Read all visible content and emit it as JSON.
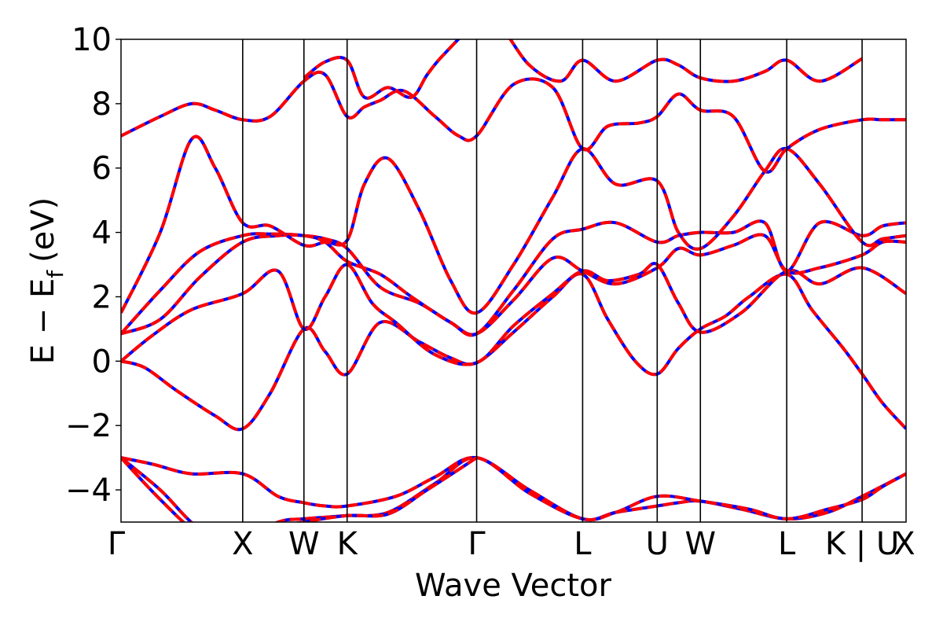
{
  "chart_data": {
    "type": "line",
    "title": "",
    "xlabel": "Wave Vector",
    "ylabel_main": "E − E",
    "ylabel_sub": "f",
    "ylabel_unit": "(eV)",
    "ylim": [
      -5,
      10
    ],
    "yticks": [
      -4,
      -2,
      0,
      2,
      4,
      6,
      8,
      10
    ],
    "ytick_labels": [
      "−4",
      "−2",
      "0",
      "2",
      "4",
      "6",
      "8",
      "10"
    ],
    "x_range": [
      0,
      1
    ],
    "kpoints": [
      {
        "label": "Γ",
        "x": 0.0
      },
      {
        "label": "X",
        "x": 0.155
      },
      {
        "label": "W",
        "x": 0.233
      },
      {
        "label": "K",
        "x": 0.288
      },
      {
        "label": "Γ",
        "x": 0.453
      },
      {
        "label": "L",
        "x": 0.588
      },
      {
        "label": "U",
        "x": 0.683
      },
      {
        "label": "W",
        "x": 0.738
      },
      {
        "label": "L",
        "x": 0.848
      },
      {
        "label": "K | U",
        "x": 0.944
      },
      {
        "label": "X",
        "x": 1.0
      }
    ],
    "grid": false,
    "series_style": {
      "under_color": "#0000ff",
      "over_color": "#ff0000"
    },
    "bands": [
      {
        "x": [
          0,
          0.04,
          0.09,
          0.155,
          0.2,
          0.233,
          0.26,
          0.288,
          0.35,
          0.4,
          0.453,
          0.52,
          0.588,
          0.63,
          0.683,
          0.71,
          0.738,
          0.79,
          0.848,
          0.9,
          0.944,
          1.0
        ],
        "y": [
          -3.0,
          -3.2,
          -3.5,
          -3.5,
          -4.2,
          -4.4,
          -4.5,
          -4.5,
          -4.2,
          -3.6,
          -3.0,
          -4.0,
          -4.9,
          -4.7,
          -4.5,
          -4.4,
          -4.35,
          -4.6,
          -4.9,
          -4.7,
          -4.2,
          -3.5
        ]
      },
      {
        "x": [
          0,
          0.05,
          0.1,
          0.155,
          0.2,
          0.233,
          0.26,
          0.288,
          0.34,
          0.4,
          0.453,
          0.52,
          0.588,
          0.63,
          0.683,
          0.738,
          0.8,
          0.848,
          0.9,
          0.944,
          0.97,
          1.0
        ],
        "y": [
          -3.0,
          -4.0,
          -5.2,
          -5.6,
          -5.0,
          -4.9,
          -4.85,
          -4.8,
          -4.7,
          -3.8,
          -3.0,
          -4.1,
          -4.9,
          -4.7,
          -4.2,
          -4.35,
          -4.6,
          -4.9,
          -4.6,
          -4.3,
          -3.9,
          -3.5
        ]
      },
      {
        "x": [
          0,
          0.05,
          0.1,
          0.155,
          0.2,
          0.233,
          0.288,
          0.34,
          0.39,
          0.453
        ],
        "y": [
          -3.0,
          -4.3,
          -5.4,
          -6.0,
          -5.2,
          -5.0,
          -4.8,
          -4.75,
          -4.0,
          -3.0
        ]
      },
      {
        "x": [
          0,
          0.03,
          0.07,
          0.12,
          0.155,
          0.19,
          0.233,
          0.26,
          0.288,
          0.33,
          0.38,
          0.42,
          0.453,
          0.5,
          0.55,
          0.588,
          0.62,
          0.655,
          0.683,
          0.71,
          0.738,
          0.77,
          0.8,
          0.848,
          0.88,
          0.92,
          0.944,
          0.97,
          1.0
        ],
        "y": [
          0.0,
          -0.2,
          -0.9,
          -1.7,
          -2.1,
          -1.0,
          1.0,
          0.3,
          -0.4,
          1.2,
          0.6,
          0.1,
          -0.05,
          0.9,
          2.0,
          2.7,
          1.3,
          0.0,
          -0.4,
          0.4,
          1.0,
          1.4,
          2.0,
          2.7,
          1.6,
          0.4,
          -0.4,
          -1.3,
          -2.1
        ]
      },
      {
        "x": [
          0,
          0.04,
          0.09,
          0.155,
          0.2,
          0.233,
          0.26,
          0.288,
          0.32,
          0.35,
          0.4,
          0.453,
          0.5,
          0.55,
          0.588,
          0.62,
          0.66,
          0.683,
          0.71,
          0.738,
          0.79,
          0.848,
          0.89,
          0.944,
          1.0
        ],
        "y": [
          0.0,
          0.8,
          1.6,
          2.1,
          2.8,
          1.0,
          2.0,
          3.0,
          1.8,
          1.2,
          0.2,
          -0.05,
          1.1,
          2.1,
          2.8,
          2.5,
          2.7,
          3.0,
          1.8,
          0.9,
          1.5,
          2.8,
          2.4,
          2.9,
          2.1
        ]
      },
      {
        "x": [
          0,
          0.05,
          0.1,
          0.155,
          0.2,
          0.233,
          0.26,
          0.288,
          0.33,
          0.38,
          0.42,
          0.453,
          0.5,
          0.55,
          0.588,
          0.63,
          0.683,
          0.71,
          0.738,
          0.78,
          0.82,
          0.848,
          0.89,
          0.944,
          0.97,
          1.0
        ],
        "y": [
          0.85,
          1.3,
          2.6,
          3.7,
          3.9,
          3.9,
          3.8,
          3.5,
          2.3,
          1.8,
          1.2,
          0.85,
          1.9,
          3.2,
          2.8,
          2.4,
          2.9,
          3.5,
          3.3,
          3.6,
          3.9,
          2.8,
          2.9,
          3.3,
          3.7,
          3.7
        ]
      },
      {
        "x": [
          0,
          0.05,
          0.1,
          0.155,
          0.19,
          0.233,
          0.26,
          0.288,
          0.33,
          0.37,
          0.42,
          0.453,
          0.5,
          0.55,
          0.588,
          0.63,
          0.683,
          0.71,
          0.738,
          0.78,
          0.82,
          0.848,
          0.89,
          0.944,
          0.97,
          1.0
        ],
        "y": [
          0.85,
          2.2,
          3.4,
          3.9,
          3.95,
          3.9,
          3.7,
          3.1,
          2.7,
          2.0,
          1.2,
          0.85,
          2.2,
          3.8,
          4.1,
          4.3,
          3.7,
          3.9,
          4.0,
          4.0,
          4.3,
          2.8,
          4.3,
          3.9,
          4.2,
          4.3
        ]
      },
      {
        "x": [
          0,
          0.05,
          0.09,
          0.12,
          0.155,
          0.19,
          0.233,
          0.26,
          0.288,
          0.31,
          0.34,
          0.38,
          0.42,
          0.453,
          0.5,
          0.55,
          0.588,
          0.63,
          0.683,
          0.71,
          0.738,
          0.78,
          0.82,
          0.848,
          0.89,
          0.944,
          0.97,
          1.0
        ],
        "y": [
          1.5,
          4.0,
          6.9,
          6.0,
          4.3,
          4.2,
          3.6,
          3.7,
          3.75,
          5.5,
          6.3,
          4.7,
          2.5,
          1.5,
          3.0,
          5.1,
          6.6,
          5.5,
          5.6,
          4.0,
          3.5,
          4.5,
          5.9,
          6.6,
          5.5,
          3.7,
          3.8,
          3.9
        ]
      },
      {
        "x": [
          0,
          0.05,
          0.09,
          0.12,
          0.155,
          0.19,
          0.233,
          0.26,
          0.288,
          0.31,
          0.33,
          0.36,
          0.4,
          0.43,
          0.453,
          0.5,
          0.55,
          0.588,
          0.62,
          0.66,
          0.683,
          0.71,
          0.738,
          0.78,
          0.82,
          0.848,
          0.89,
          0.944,
          0.97,
          1.0
        ],
        "y": [
          7.0,
          7.6,
          8.0,
          7.8,
          7.5,
          7.6,
          8.7,
          8.9,
          7.6,
          7.9,
          8.1,
          8.4,
          7.6,
          7.0,
          7.0,
          8.6,
          8.5,
          6.6,
          7.3,
          7.4,
          7.6,
          8.3,
          7.8,
          7.6,
          5.9,
          6.6,
          7.2,
          7.5,
          7.5,
          7.5
        ]
      },
      {
        "x": [
          0.233,
          0.26,
          0.288,
          0.31,
          0.34,
          0.37,
          0.39,
          0.41,
          0.453,
          0.48,
          0.52,
          0.56,
          0.588,
          0.63,
          0.683,
          0.71,
          0.738,
          0.78,
          0.82,
          0.848,
          0.89,
          0.944
        ],
        "y": [
          8.8,
          9.3,
          9.35,
          8.2,
          8.5,
          8.2,
          8.9,
          9.5,
          10.5,
          10.5,
          9.2,
          8.7,
          9.35,
          8.7,
          9.35,
          9.2,
          8.8,
          8.7,
          9.0,
          9.35,
          8.7,
          9.4
        ]
      }
    ]
  }
}
